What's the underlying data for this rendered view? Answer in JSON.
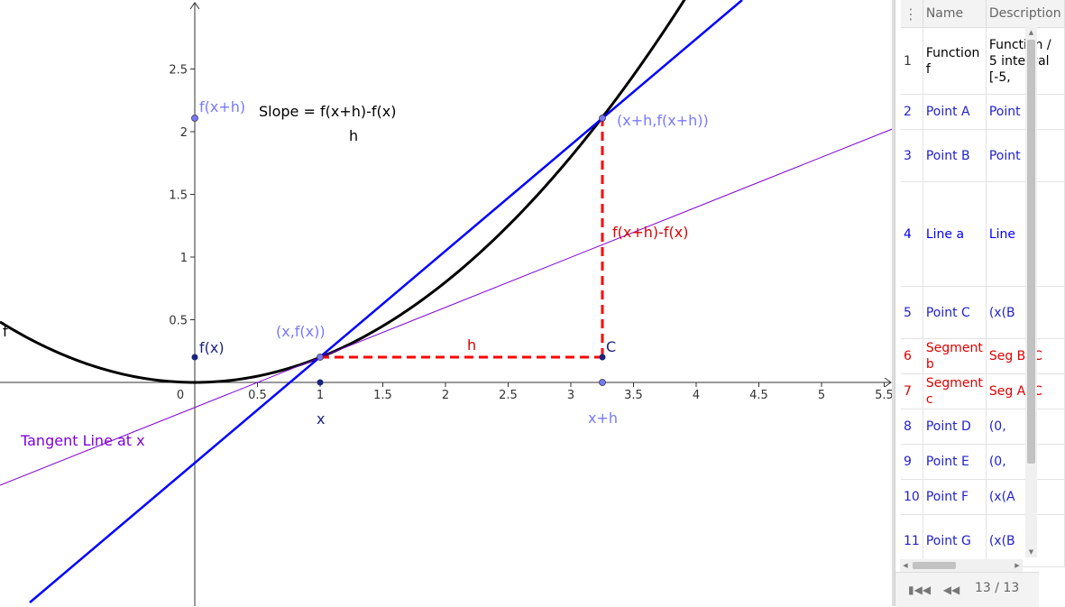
{
  "graph": {
    "function_label": "f",
    "axis": {
      "x_ticks": [
        "0",
        "0.5",
        "1",
        "1.5",
        "2",
        "2.5",
        "3",
        "3.5",
        "4",
        "4.5",
        "5",
        "5.5"
      ],
      "y_ticks": [
        "0.5",
        "1",
        "1.5",
        "2",
        "2.5"
      ]
    },
    "labels": {
      "slope_numerator": "Slope = f(x+h)-f(x)",
      "slope_denominator": "h",
      "point_fxh": "f(x+h)",
      "point_fx": "f(x)",
      "point_x_fx": "(x,f(x))",
      "point_xh_fxh": "(x+h,f(x+h))",
      "point_c": "C",
      "delta_y": "f(x+h)-f(x)",
      "delta_x": "h",
      "x_point": "x",
      "xh_point": "x+h",
      "tangent_line": "Tangent Line at x"
    },
    "colors": {
      "curve": "#000000",
      "secant": "#0000ff",
      "tangent": "#7f00d4",
      "segments": "#ff0000",
      "point_dark": "#1a237e",
      "point_light": "#7878ff"
    }
  },
  "protocol": {
    "columns": {
      "name": "Name",
      "description": "Description"
    },
    "rows": [
      {
        "num": "1",
        "name": "Function f",
        "desc": "Function / 5 interval [-5,",
        "color": "#000000"
      },
      {
        "num": "2",
        "name": "Point A",
        "desc": "Point",
        "color": "#2222cc"
      },
      {
        "num": "3",
        "name": "Point B",
        "desc": "Point",
        "color": "#2222cc"
      },
      {
        "num": "4",
        "name": "Line a",
        "desc": "Line",
        "color": "#0000ff"
      },
      {
        "num": "5",
        "name": "Point C",
        "desc": "(x(B",
        "color": "#2222cc"
      },
      {
        "num": "6",
        "name": "Segment b",
        "desc": "Seg B, C",
        "color": "#dd0000"
      },
      {
        "num": "7",
        "name": "Segment c",
        "desc": "Seg A, C",
        "color": "#dd0000"
      },
      {
        "num": "8",
        "name": "Point D",
        "desc": "(0,",
        "color": "#2222cc"
      },
      {
        "num": "9",
        "name": "Point E",
        "desc": "(0,",
        "color": "#2222cc"
      },
      {
        "num": "10",
        "name": "Point F",
        "desc": "(x(A",
        "color": "#2222cc"
      },
      {
        "num": "11",
        "name": "Point G",
        "desc": "(x(B",
        "color": "#2222cc"
      }
    ]
  },
  "navigation": {
    "step": "13 / 13"
  }
}
